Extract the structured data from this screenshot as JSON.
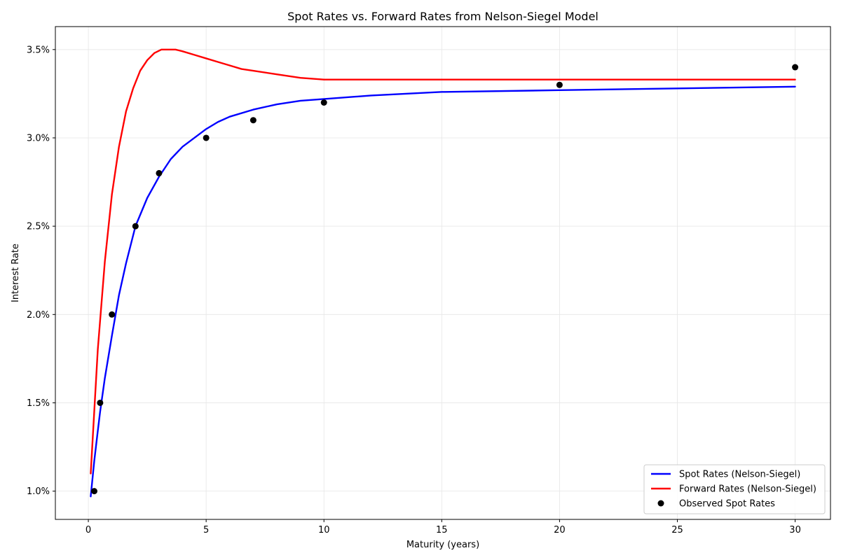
{
  "chart_data": {
    "type": "line",
    "title": "Spot Rates vs. Forward Rates from Nelson-Siegel Model",
    "xlabel": "Maturity (years)",
    "ylabel": "Interest Rate",
    "xlim": [
      -1.4,
      31.5
    ],
    "ylim": [
      0.0084,
      0.0363
    ],
    "x_ticks": [
      0,
      5,
      10,
      15,
      20,
      25,
      30
    ],
    "x_tick_labels": [
      "0",
      "5",
      "10",
      "15",
      "20",
      "25",
      "30"
    ],
    "y_ticks": [
      0.01,
      0.015,
      0.02,
      0.025,
      0.03,
      0.035
    ],
    "y_tick_labels": [
      "1.0%",
      "1.5%",
      "2.0%",
      "2.5%",
      "3.0%",
      "3.5%"
    ],
    "grid": true,
    "legend_position": "bottom-right",
    "series": [
      {
        "name": "Spot Rates (Nelson-Siegel)",
        "kind": "line",
        "color": "#0000ff",
        "x": [
          0.1,
          0.25,
          0.4,
          0.5,
          0.7,
          1.0,
          1.3,
          1.6,
          2.0,
          2.5,
          3.0,
          3.5,
          4.0,
          4.5,
          5.0,
          5.5,
          6.0,
          7.0,
          8.0,
          9.0,
          10.0,
          12.0,
          15.0,
          20.0,
          25.0,
          30.0
        ],
        "y": [
          0.0097,
          0.0117,
          0.0134,
          0.0145,
          0.0164,
          0.0188,
          0.0211,
          0.0229,
          0.025,
          0.0266,
          0.0278,
          0.0288,
          0.0295,
          0.03,
          0.0305,
          0.0309,
          0.0312,
          0.0316,
          0.0319,
          0.0321,
          0.0322,
          0.0324,
          0.0326,
          0.0327,
          0.0328,
          0.0329
        ]
      },
      {
        "name": "Forward Rates (Nelson-Siegel)",
        "kind": "line",
        "color": "#ff0000",
        "x": [
          0.1,
          0.25,
          0.4,
          0.55,
          0.7,
          1.0,
          1.3,
          1.6,
          1.9,
          2.2,
          2.5,
          2.8,
          3.1,
          3.4,
          3.7,
          4.0,
          4.5,
          5.0,
          5.5,
          6.0,
          6.5,
          7.0,
          8.0,
          9.0,
          10.0,
          11.0,
          12.0,
          14.0,
          17.0,
          20.0,
          25.0,
          30.0
        ],
        "y": [
          0.011,
          0.0145,
          0.018,
          0.0205,
          0.023,
          0.0268,
          0.0295,
          0.0315,
          0.0328,
          0.0338,
          0.0344,
          0.0348,
          0.035,
          0.035,
          0.035,
          0.0349,
          0.0347,
          0.0345,
          0.0343,
          0.0341,
          0.0339,
          0.0338,
          0.0336,
          0.0334,
          0.0333,
          0.0333,
          0.0333,
          0.0333,
          0.0333,
          0.0333,
          0.0333,
          0.0333
        ]
      },
      {
        "name": "Observed Spot Rates",
        "kind": "scatter",
        "color": "#000000",
        "x": [
          0.25,
          0.5,
          1,
          2,
          3,
          5,
          7,
          10,
          20,
          30
        ],
        "y": [
          0.01,
          0.015,
          0.02,
          0.025,
          0.028,
          0.03,
          0.031,
          0.032,
          0.033,
          0.034
        ]
      }
    ]
  }
}
